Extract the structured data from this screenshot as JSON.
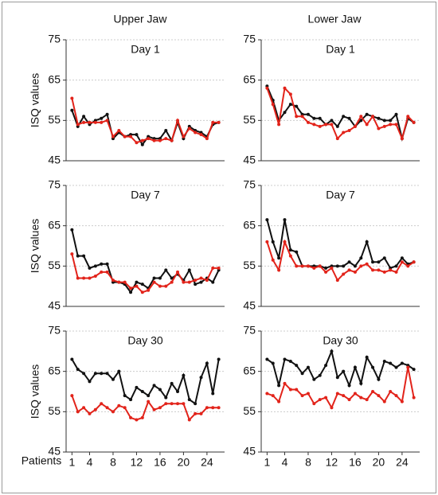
{
  "columns": [
    "Upper Jaw",
    "Lower Jaw"
  ],
  "ylabel": "ISQ values",
  "xlabel": "Patients",
  "chart_data": [
    {
      "type": "line",
      "title": "Day 1",
      "xlim": [
        0,
        27
      ],
      "ylim": [
        45,
        75
      ],
      "yticks": [
        45,
        55,
        65,
        75
      ],
      "grid": true,
      "x": [
        1,
        2,
        3,
        4,
        5,
        6,
        7,
        8,
        9,
        10,
        11,
        12,
        13,
        14,
        15,
        16,
        17,
        18,
        19,
        20,
        21,
        22,
        23,
        24,
        25,
        26
      ],
      "series": [
        {
          "color": "#111111",
          "values": [
            57.5,
            53.5,
            56,
            54,
            55,
            55.5,
            56.5,
            50.5,
            52,
            51,
            51.5,
            51.5,
            49,
            51,
            50.5,
            50.5,
            52.5,
            50,
            54.5,
            50.5,
            53.5,
            52.5,
            52,
            51,
            54,
            54.5
          ]
        },
        {
          "color": "#e2231a",
          "values": [
            60.5,
            54,
            54.5,
            54.5,
            54.5,
            54.5,
            55,
            51,
            52.5,
            51,
            51,
            49.5,
            50,
            50.5,
            50,
            50,
            50.5,
            50,
            55,
            51,
            53,
            52,
            51.5,
            50.5,
            54.5,
            54.5
          ]
        }
      ]
    },
    {
      "type": "line",
      "title": "Day 1",
      "xlim": [
        0,
        27
      ],
      "ylim": [
        45,
        75
      ],
      "yticks": [
        45,
        55,
        65,
        75
      ],
      "grid": true,
      "x": [
        1,
        2,
        3,
        4,
        5,
        6,
        7,
        8,
        9,
        10,
        11,
        12,
        13,
        14,
        15,
        16,
        17,
        18,
        19,
        20,
        21,
        22,
        23,
        24,
        25,
        26
      ],
      "series": [
        {
          "color": "#111111",
          "values": [
            63.5,
            60,
            55,
            57,
            59,
            58.5,
            56.5,
            56.5,
            55.5,
            55.5,
            54,
            55,
            53.5,
            56,
            55.5,
            53.5,
            55,
            56.5,
            56,
            55.5,
            55,
            55,
            56.5,
            50.5,
            55.5,
            54.5
          ]
        },
        {
          "color": "#e2231a",
          "values": [
            63,
            59,
            54,
            63,
            61.5,
            56,
            56,
            54.5,
            54,
            53.5,
            54,
            54,
            50.5,
            52,
            52.5,
            53.5,
            56,
            54,
            56,
            53,
            53.5,
            54,
            54,
            50.5,
            56,
            54.5
          ]
        }
      ]
    },
    {
      "type": "line",
      "title": "Day 7",
      "xlim": [
        0,
        27
      ],
      "ylim": [
        45,
        75
      ],
      "yticks": [
        45,
        55,
        65,
        75
      ],
      "grid": true,
      "x": [
        1,
        2,
        3,
        4,
        5,
        6,
        7,
        8,
        9,
        10,
        11,
        12,
        13,
        14,
        15,
        16,
        17,
        18,
        19,
        20,
        21,
        22,
        23,
        24,
        25,
        26
      ],
      "series": [
        {
          "color": "#111111",
          "values": [
            64,
            57.5,
            57.5,
            54.5,
            55,
            55.5,
            55.5,
            51,
            51,
            50.5,
            48.5,
            51,
            50.5,
            49.5,
            52,
            52,
            54,
            52,
            53,
            51.5,
            54,
            50.5,
            51,
            52,
            51,
            54
          ]
        },
        {
          "color": "#e2231a",
          "values": [
            58,
            52,
            52,
            52,
            52.5,
            53.5,
            53.5,
            51.5,
            51,
            51,
            49.5,
            50,
            48.5,
            49,
            51,
            50,
            50,
            51,
            53.5,
            51,
            51,
            51.5,
            52,
            51.5,
            54.5,
            54.5
          ]
        }
      ]
    },
    {
      "type": "line",
      "title": "Day 7",
      "xlim": [
        0,
        27
      ],
      "ylim": [
        45,
        75
      ],
      "yticks": [
        45,
        55,
        65,
        75
      ],
      "grid": true,
      "x": [
        1,
        2,
        3,
        4,
        5,
        6,
        7,
        8,
        9,
        10,
        11,
        12,
        13,
        14,
        15,
        16,
        17,
        18,
        19,
        20,
        21,
        22,
        23,
        24,
        25,
        26
      ],
      "series": [
        {
          "color": "#111111",
          "values": [
            66.5,
            61,
            57,
            66.5,
            59,
            58.5,
            55,
            55,
            55,
            55,
            54.5,
            55,
            55,
            55,
            56,
            55,
            57,
            61,
            56,
            56,
            57,
            54.5,
            55,
            57,
            55.5,
            56
          ]
        },
        {
          "color": "#e2231a",
          "values": [
            61,
            56.5,
            54,
            61,
            57.5,
            55,
            55,
            55,
            54.5,
            55,
            53.5,
            54.5,
            51.5,
            53,
            54,
            53.5,
            55,
            55.5,
            54,
            54,
            53.5,
            54,
            53.5,
            56,
            55,
            56
          ]
        }
      ]
    },
    {
      "type": "line",
      "title": "Day 30",
      "xlim": [
        0,
        27
      ],
      "ylim": [
        45,
        75
      ],
      "yticks": [
        45,
        55,
        65,
        75
      ],
      "xticks": [
        1,
        4,
        8,
        12,
        16,
        20,
        24
      ],
      "grid": true,
      "x": [
        1,
        2,
        3,
        4,
        5,
        6,
        7,
        8,
        9,
        10,
        11,
        12,
        13,
        14,
        15,
        16,
        17,
        18,
        19,
        20,
        21,
        22,
        23,
        24,
        25,
        26
      ],
      "series": [
        {
          "color": "#111111",
          "values": [
            68,
            65.5,
            64.5,
            62.5,
            64.5,
            64.5,
            64.5,
            63,
            65,
            59,
            58,
            61,
            60,
            59,
            61.5,
            60.5,
            58.5,
            62,
            60,
            64,
            58,
            57,
            63.5,
            67,
            59.5,
            68
          ]
        },
        {
          "color": "#e2231a",
          "values": [
            59,
            55,
            56,
            54.5,
            55.5,
            57,
            56,
            55,
            56.5,
            56,
            53.5,
            53,
            53.5,
            57.5,
            55.5,
            56,
            57,
            57,
            57,
            57,
            53,
            54.5,
            54.5,
            56,
            56,
            56
          ]
        }
      ]
    },
    {
      "type": "line",
      "title": "Day 30",
      "xlim": [
        0,
        27
      ],
      "ylim": [
        45,
        75
      ],
      "yticks": [
        45,
        55,
        65,
        75
      ],
      "xticks": [
        1,
        4,
        8,
        12,
        16,
        20,
        24
      ],
      "grid": true,
      "x": [
        1,
        2,
        3,
        4,
        5,
        6,
        7,
        8,
        9,
        10,
        11,
        12,
        13,
        14,
        15,
        16,
        17,
        18,
        19,
        20,
        21,
        22,
        23,
        24,
        25,
        26
      ],
      "series": [
        {
          "color": "#111111",
          "values": [
            68,
            67,
            61.5,
            68,
            67.5,
            66.5,
            64.5,
            66,
            63,
            64,
            66.5,
            70,
            63.5,
            65,
            61.5,
            66,
            62,
            68.5,
            66,
            63,
            67.5,
            67,
            66,
            67,
            66.5,
            65.5
          ]
        },
        {
          "color": "#e2231a",
          "values": [
            59.5,
            59,
            57.5,
            62,
            60.5,
            60.5,
            59,
            59.5,
            57,
            58,
            58.5,
            56,
            59.5,
            59,
            58,
            59.5,
            58.5,
            58,
            60,
            59,
            57.5,
            60,
            59,
            57.5,
            66,
            58.5
          ]
        }
      ]
    }
  ]
}
